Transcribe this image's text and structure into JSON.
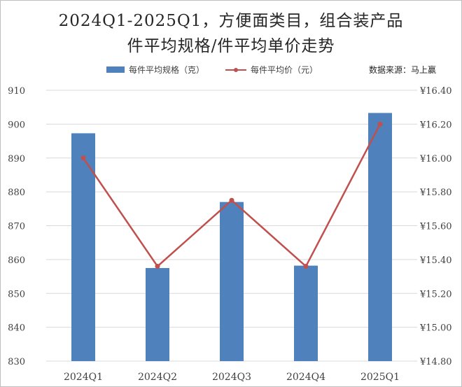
{
  "title": {
    "line1": "2024Q1-2025Q1，方便面类目，组合装产品",
    "line2": "件平均规格/件平均单价走势"
  },
  "legend": {
    "bar_label": "每件平均规格（克）",
    "line_label": "每件平均价（元）"
  },
  "source": "数据来源：马上赢",
  "colors": {
    "bar": "#4f81bd",
    "line": "#c0504d",
    "grid": "#d9d9d9",
    "text": "#404040"
  },
  "chart_data": {
    "type": "bar",
    "categories": [
      "2024Q1",
      "2024Q2",
      "2024Q3",
      "2024Q4",
      "2025Q1"
    ],
    "series": [
      {
        "name": "每件平均规格（克）",
        "type": "bar",
        "axis": "left",
        "values": [
          897.3,
          857.5,
          877.0,
          858.2,
          903.3
        ]
      },
      {
        "name": "每件平均价（元）",
        "type": "line",
        "axis": "right",
        "values": [
          16.0,
          15.36,
          15.75,
          15.36,
          16.2
        ]
      }
    ],
    "y_left": {
      "lim": [
        830,
        910
      ],
      "ticks": [
        830,
        840,
        850,
        860,
        870,
        880,
        890,
        900,
        910
      ],
      "tick_labels": [
        "830",
        "840",
        "850",
        "860",
        "870",
        "880",
        "890",
        "900",
        "910"
      ]
    },
    "y_right": {
      "lim": [
        14.8,
        16.4
      ],
      "ticks": [
        14.8,
        15.0,
        15.2,
        15.4,
        15.6,
        15.8,
        16.0,
        16.2,
        16.4
      ],
      "tick_labels": [
        "¥14.80",
        "¥15.00",
        "¥15.20",
        "¥15.40",
        "¥15.60",
        "¥15.80",
        "¥16.00",
        "¥16.20",
        "¥16.40"
      ]
    },
    "grid": "horizontal",
    "legend_position": "top"
  }
}
